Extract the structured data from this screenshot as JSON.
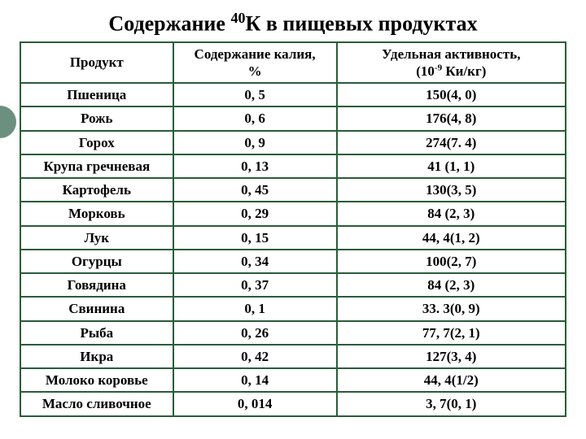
{
  "title_parts": {
    "pre": "Содержание ",
    "sup": "40",
    "post": "К в пищевых продуктах"
  },
  "headers": {
    "col1": "Продукт",
    "col2_line1": "Содержание калия,",
    "col2_line2": "%",
    "col3_line1_pre": "Удельная   активность,",
    "col3_line2_pre": "(10",
    "col3_line2_sup": "-9",
    "col3_line2_post": " Ки/кг)"
  },
  "rows": [
    {
      "product": "Пшеница",
      "potassium": "0, 5",
      "activity": "150(4, 0)"
    },
    {
      "product": "Рожь",
      "potassium": "0, 6",
      "activity": "176(4, 8)"
    },
    {
      "product": "Горох",
      "potassium": "0, 9",
      "activity": "274(7. 4)"
    },
    {
      "product": "Крупа гречневая",
      "potassium": "0, 13",
      "activity": "41 (1, 1)"
    },
    {
      "product": "Картофель",
      "potassium": "0, 45",
      "activity": "130(3, 5)"
    },
    {
      "product": "Морковь",
      "potassium": "0, 29",
      "activity": "84 (2, 3)"
    },
    {
      "product": "Лук",
      "potassium": "0, 15",
      "activity": "44, 4(1, 2)"
    },
    {
      "product": "Огурцы",
      "potassium": "0, 34",
      "activity": "100(2, 7)"
    },
    {
      "product": "Говядина",
      "potassium": "0, 37",
      "activity": "84 (2, 3)"
    },
    {
      "product": "Свинина",
      "potassium": "0, 1",
      "activity": "33. 3(0, 9)"
    },
    {
      "product": "Рыба",
      "potassium": "0, 26",
      "activity": "77, 7(2, 1)"
    },
    {
      "product": "Икра",
      "potassium": "0, 42",
      "activity": "127(3, 4)"
    },
    {
      "product": "Молоко коровье",
      "potassium": "0, 14",
      "activity": "44, 4(1/2)"
    },
    {
      "product": "Масло сливочное",
      "potassium": "0, 014",
      "activity": "3, 7(0, 1)"
    }
  ],
  "styling": {
    "type": "table",
    "border_color": "#2a5c3a",
    "border_width": 2,
    "background_color": "#ffffff",
    "accent_color": "#6b9080",
    "title_fontsize": 26,
    "cell_fontsize": 17,
    "font_family": "Times New Roman",
    "font_weight": "bold",
    "column_widths_pct": [
      28,
      30,
      42
    ],
    "text_align": "center"
  }
}
